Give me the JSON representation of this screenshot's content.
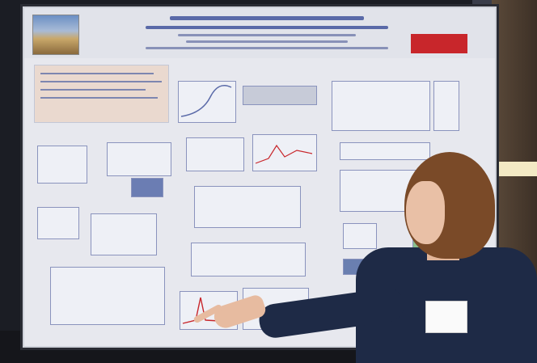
{
  "scene": {
    "colors": {
      "poster_bg": "#e7e8ee",
      "poster_text": "#5a6aa8",
      "logo_red": "#c8262b",
      "presenter_shirt": "#1e2a46",
      "presenter_hair": "#7a4a28"
    },
    "icons": [
      "university-building-logo",
      "red-institution-logo"
    ]
  }
}
